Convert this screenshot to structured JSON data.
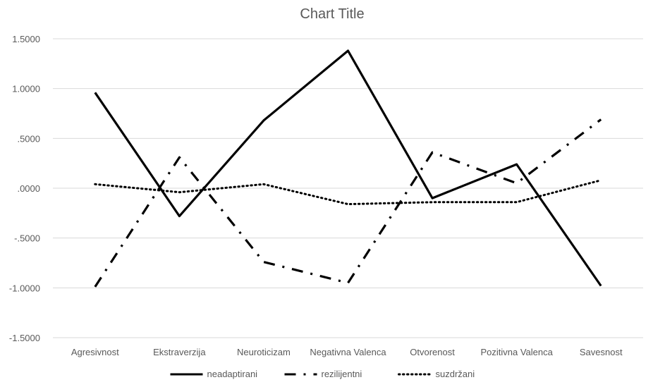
{
  "chart_data": {
    "type": "line",
    "title": "Chart Title",
    "xlabel": "",
    "ylabel": "",
    "categories": [
      "Agresivnost",
      "Ekstraverzija",
      "Neuroticizam",
      "Negativna Valenca",
      "Otvorenost",
      "Pozitivna Valenca",
      "Savesnost"
    ],
    "ylim": [
      -1.5,
      1.5
    ],
    "yticks": [
      1.5,
      1.0,
      0.5,
      0.0,
      -0.5,
      -1.0,
      -1.5
    ],
    "ytick_labels": [
      "1.5000",
      "1.0000",
      ".5000",
      ".0000",
      "-.5000",
      "-1.0000",
      "-1.5000"
    ],
    "grid": true,
    "legend_position": "bottom",
    "series": [
      {
        "name": "neadaptirani",
        "style": "solid",
        "color": "#000000",
        "values": [
          0.96,
          -0.28,
          0.68,
          1.38,
          -0.1,
          0.24,
          -0.98
        ]
      },
      {
        "name": "rezilijentni",
        "style": "dash-dot",
        "color": "#000000",
        "values": [
          -0.99,
          0.31,
          -0.74,
          -0.95,
          0.36,
          0.05,
          0.69
        ]
      },
      {
        "name": "suzdržani",
        "style": "dotted",
        "color": "#000000",
        "values": [
          0.04,
          -0.04,
          0.04,
          -0.16,
          -0.14,
          -0.14,
          0.08
        ]
      }
    ]
  }
}
